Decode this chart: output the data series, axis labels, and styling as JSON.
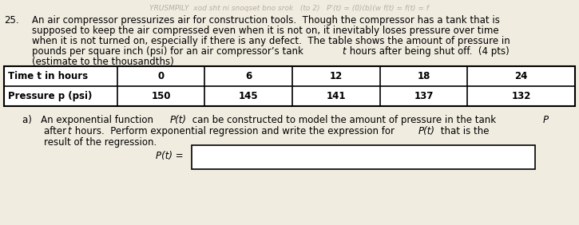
{
  "problem_number": "25.",
  "bg_color": "#f0ece0",
  "text_color": "#000000",
  "watermark_color": "#b8b0a0",
  "watermark_fontsize": 6.5,
  "main_fontsize": 8.5,
  "table_fontsize": 8.5,
  "part_a_fontsize": 8.5,
  "table_headers": [
    "Time t in hours",
    "0",
    "6",
    "12",
    "18",
    "24"
  ],
  "table_row2_label": "Pressure p (psi)",
  "table_row2_values": [
    "150",
    "145",
    "141",
    "137",
    "132"
  ],
  "watermark": "YRUSMPILY  xod sht ni snoqset bno srok   (to 2)   P'(t) = (0)(b)(w f(t) = f(t) = f"
}
